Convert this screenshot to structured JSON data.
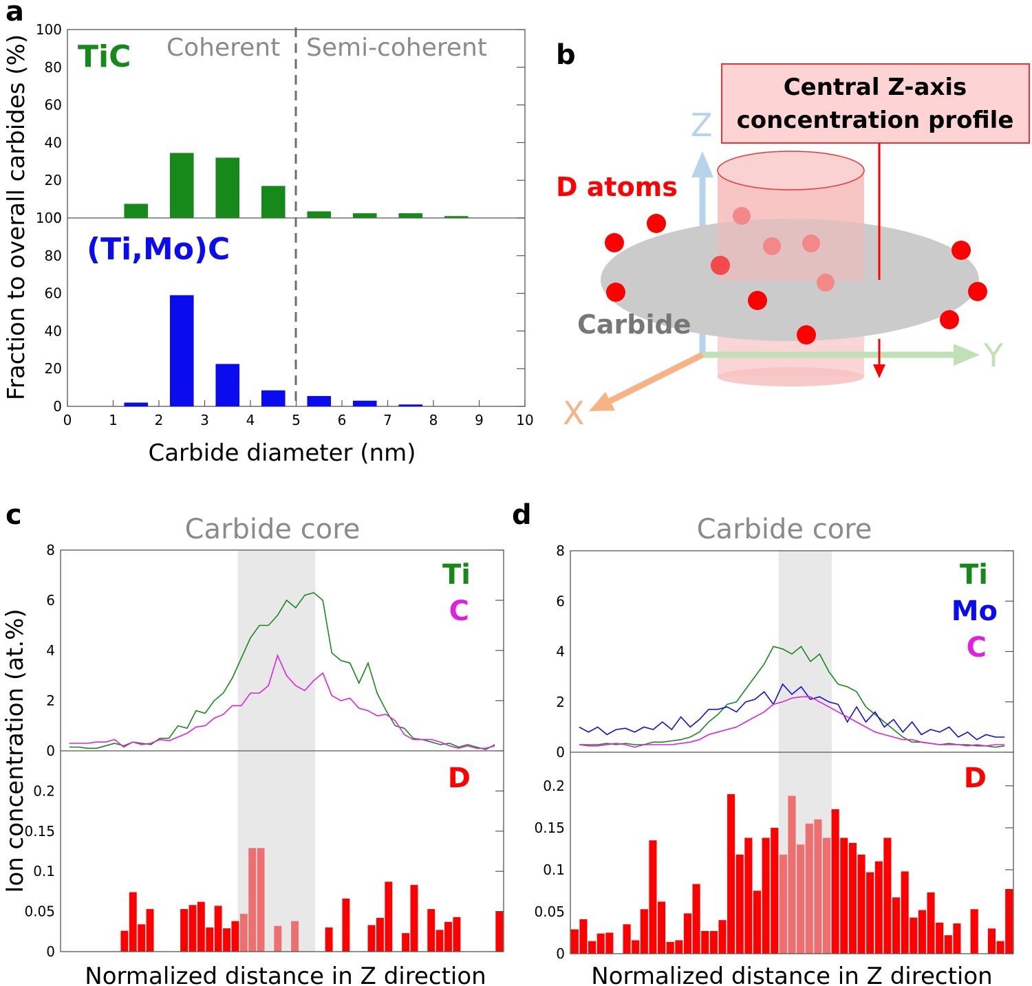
{
  "panel_labels": {
    "a": "a",
    "b": "b",
    "c": "c",
    "d": "d"
  },
  "colors": {
    "green": "#16891a",
    "blue": "#0b0bf0",
    "magenta": "#e020e0",
    "red": "#ff0000",
    "gray_text": "#8a8a8a",
    "core_shade": "#e8e8e8",
    "d_core_bar": "#ee6f6f"
  },
  "chart_data": [
    {
      "id": "a-top",
      "type": "bar",
      "series_label": "TiC",
      "region_labels": [
        "Coherent",
        "Semi-coherent"
      ],
      "divider_x": 5,
      "x": [
        1.5,
        2.5,
        3.5,
        4.5,
        5.5,
        6.5,
        7.5,
        8.5
      ],
      "values": [
        7.5,
        34.5,
        32,
        17,
        3.5,
        2.5,
        2.5,
        1
      ],
      "xlim": [
        0,
        10
      ],
      "ylim": [
        0,
        100
      ],
      "yticks": [
        "0",
        "20",
        "40",
        "60",
        "80",
        "100"
      ]
    },
    {
      "id": "a-bottom",
      "type": "bar",
      "series_label": "(Ti,Mo)C",
      "divider_x": 5,
      "x": [
        1.5,
        2.5,
        3.5,
        4.5,
        5.5,
        6.5,
        7.5
      ],
      "values": [
        2,
        59,
        22.5,
        8.5,
        5.5,
        3,
        1
      ],
      "xlim": [
        0,
        10
      ],
      "ylim": [
        0,
        100
      ],
      "yticks": [
        "0",
        "20",
        "40",
        "60",
        "80",
        "100"
      ],
      "xticks": [
        "0",
        "1",
        "2",
        "3",
        "4",
        "5",
        "6",
        "7",
        "8",
        "9",
        "10"
      ],
      "xlabel": "Carbide diameter (nm)",
      "ylabel": "Fraction to overall carbides (%)"
    },
    {
      "id": "b",
      "type": "schematic",
      "callout": [
        "Central Z-axis",
        "concentration profile"
      ],
      "axis_labels": {
        "z": "Z",
        "y": "Y",
        "x": "X"
      },
      "atoms_label": "D atoms",
      "disc_label": "Carbide"
    },
    {
      "id": "c-top",
      "type": "line",
      "title": "Carbide core",
      "xlim": [
        0,
        1
      ],
      "ylim": [
        0,
        8
      ],
      "yticks": [
        "0",
        "2",
        "4",
        "6",
        "8"
      ],
      "core_range": [
        0.4,
        0.575
      ],
      "series": [
        {
          "name": "Ti",
          "color_key": "green",
          "values": [
            0.15,
            0.15,
            0.1,
            0.1,
            0.2,
            0.3,
            0.2,
            0.35,
            0.3,
            0.25,
            0.5,
            0.5,
            1.0,
            0.9,
            1.6,
            1.5,
            2.0,
            2.3,
            2.9,
            3.7,
            4.5,
            5.0,
            5.0,
            5.4,
            6.0,
            5.7,
            6.2,
            6.3,
            6.0,
            3.9,
            3.6,
            3.5,
            2.7,
            3.5,
            2.3,
            1.6,
            1.0,
            0.9,
            0.5,
            0.45,
            0.35,
            0.25,
            0.3,
            0.15,
            0.25,
            0.15,
            0.05,
            0.25
          ]
        },
        {
          "name": "C",
          "color_key": "magenta",
          "values": [
            0.3,
            0.3,
            0.3,
            0.35,
            0.35,
            0.45,
            0.15,
            0.35,
            0.25,
            0.3,
            0.45,
            0.4,
            0.55,
            0.7,
            0.95,
            1.0,
            1.3,
            1.45,
            1.8,
            1.8,
            2.3,
            2.3,
            2.6,
            3.8,
            3.0,
            2.6,
            2.4,
            2.8,
            3.1,
            2.2,
            2.0,
            2.1,
            1.7,
            1.6,
            1.4,
            1.45,
            1.2,
            0.65,
            0.45,
            0.45,
            0.45,
            0.35,
            0.2,
            0.1,
            0.2,
            0.1,
            0.1,
            0.2
          ]
        }
      ]
    },
    {
      "id": "c-bottom",
      "type": "bar",
      "series_label": "D",
      "xlabel": "Normalized distance in Z direction",
      "ylabel": "Ion concentration (at.%)",
      "xlim": [
        0,
        1
      ],
      "ylim": [
        0,
        0.25
      ],
      "yticks": [
        "0",
        "0.05",
        "0.1",
        "0.15",
        "0.2"
      ],
      "core_range": [
        0.4,
        0.575
      ],
      "values": [
        0,
        0,
        0,
        0,
        0,
        0,
        0,
        0.026,
        0.074,
        0.034,
        0.053,
        0,
        0,
        0,
        0.053,
        0.058,
        0.062,
        0.03,
        0.057,
        0.029,
        0.038,
        0.047,
        0.129,
        0.129,
        0,
        0.032,
        0,
        0.038,
        0,
        0,
        0,
        0.03,
        0,
        0.066,
        0,
        0,
        0.033,
        0.042,
        0.087,
        0,
        0.023,
        0.083,
        0,
        0.053,
        0.027,
        0.037,
        0.043,
        0,
        0,
        0,
        0,
        0.05
      ]
    },
    {
      "id": "d-top",
      "type": "line",
      "title": "Carbide core",
      "xlim": [
        0,
        1
      ],
      "ylim": [
        0,
        8
      ],
      "yticks": [
        "0",
        "2",
        "4",
        "6",
        "8"
      ],
      "core_range": [
        0.47,
        0.59
      ],
      "series": [
        {
          "name": "Ti",
          "color_key": "green",
          "values": [
            0.3,
            0.3,
            0.3,
            0.35,
            0.3,
            0.35,
            0.3,
            0.3,
            0.4,
            0.4,
            0.45,
            0.5,
            0.6,
            0.8,
            1.2,
            1.5,
            1.9,
            2.0,
            2.5,
            3.0,
            3.5,
            4.2,
            4.1,
            3.9,
            4.2,
            3.6,
            3.9,
            3.2,
            2.7,
            2.6,
            2.4,
            1.8,
            1.5,
            1.2,
            0.9,
            0.6,
            0.4,
            0.4,
            0.35,
            0.3,
            0.35,
            0.3,
            0.3,
            0.25,
            0.25,
            0.2,
            0.25
          ]
        },
        {
          "name": "Mo",
          "color_key": "blue",
          "values": [
            1.0,
            0.8,
            1.0,
            0.7,
            0.9,
            0.95,
            0.8,
            1.0,
            0.9,
            1.2,
            0.9,
            1.4,
            1.0,
            1.3,
            1.7,
            1.7,
            1.8,
            1.6,
            2.0,
            2.1,
            2.4,
            1.9,
            2.7,
            2.3,
            2.6,
            2.1,
            2.2,
            2.0,
            1.9,
            1.2,
            1.8,
            1.2,
            1.6,
            1.0,
            1.3,
            0.8,
            1.2,
            0.7,
            0.9,
            0.8,
            1.0,
            0.6,
            0.8,
            0.5,
            0.7,
            0.6,
            0.6
          ]
        },
        {
          "name": "C",
          "color_key": "magenta",
          "values": [
            0.3,
            0.25,
            0.25,
            0.3,
            0.35,
            0.3,
            0.2,
            0.3,
            0.3,
            0.3,
            0.3,
            0.35,
            0.4,
            0.5,
            0.7,
            0.8,
            0.9,
            1.0,
            1.2,
            1.4,
            1.6,
            1.9,
            2.0,
            2.15,
            2.2,
            2.2,
            2.0,
            1.8,
            1.6,
            1.4,
            1.2,
            1.0,
            0.8,
            0.7,
            0.6,
            0.5,
            0.5,
            0.4,
            0.35,
            0.3,
            0.3,
            0.3,
            0.25,
            0.3,
            0.25,
            0.3,
            0.3
          ]
        }
      ]
    },
    {
      "id": "d-bottom",
      "type": "bar",
      "series_label": "D",
      "xlabel": "Normalized distance in Z direction",
      "xlim": [
        0,
        1
      ],
      "ylim": [
        0,
        0.24
      ],
      "yticks": [
        "0",
        "0.05",
        "0.1",
        "0.15",
        "0.2"
      ],
      "core_range": [
        0.47,
        0.59
      ],
      "values": [
        0.029,
        0.041,
        0.015,
        0.024,
        0.025,
        0,
        0.035,
        0.016,
        0.053,
        0.135,
        0.062,
        0.014,
        0.016,
        0.048,
        0.083,
        0.027,
        0.027,
        0.04,
        0.19,
        0.118,
        0.138,
        0.075,
        0.138,
        0.15,
        0.118,
        0.188,
        0.13,
        0.155,
        0.16,
        0.138,
        0.172,
        0.138,
        0.132,
        0.118,
        0.097,
        0.11,
        0.138,
        0.067,
        0.098,
        0.043,
        0.052,
        0.073,
        0.037,
        0.022,
        0.036,
        0.0,
        0.053,
        0.0,
        0.03,
        0.015,
        0.077
      ]
    }
  ]
}
